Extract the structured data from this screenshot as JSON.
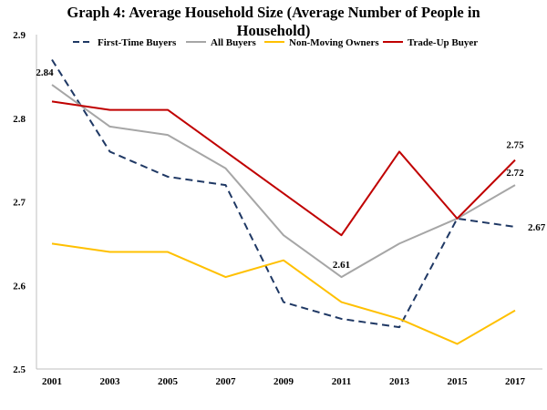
{
  "chart_data": {
    "type": "line",
    "title": "Graph 4: Average Household Size (Average Number of People in Household)",
    "xlabel": "",
    "ylabel": "",
    "ylim": [
      2.5,
      2.9
    ],
    "y_ticks": [
      "2.5",
      "2.6",
      "2.7",
      "2.8",
      "2.9"
    ],
    "y_tick_values": [
      2.5,
      2.6,
      2.7,
      2.8,
      2.9
    ],
    "categories": [
      "2001",
      "2003",
      "2005",
      "2007",
      "2009",
      "2011",
      "2013",
      "2015",
      "2017"
    ],
    "grid": false,
    "legend_position": "top",
    "series": [
      {
        "name": "First-Time Buyers",
        "color": "#1f3864",
        "dash": "dashed",
        "values": [
          2.87,
          2.76,
          2.73,
          2.72,
          2.58,
          2.56,
          2.55,
          2.68,
          2.67
        ]
      },
      {
        "name": "All Buyers",
        "color": "#a6a6a6",
        "dash": "solid",
        "values": [
          2.84,
          2.79,
          2.78,
          2.74,
          2.66,
          2.61,
          2.65,
          2.68,
          2.72
        ]
      },
      {
        "name": "Non-Moving Owners",
        "color": "#ffc000",
        "dash": "solid",
        "values": [
          2.65,
          2.64,
          2.64,
          2.61,
          2.63,
          2.58,
          2.56,
          2.53,
          2.57
        ]
      },
      {
        "name": "Trade-Up Buyer",
        "color": "#c00000",
        "dash": "solid",
        "values": [
          2.82,
          2.81,
          2.81,
          2.76,
          2.71,
          2.66,
          2.76,
          2.68,
          2.75
        ]
      }
    ],
    "data_labels": [
      {
        "series": "All Buyers",
        "category": "2001",
        "text": "2.84"
      },
      {
        "series": "All Buyers",
        "category": "2011",
        "text": "2.61"
      },
      {
        "series": "Trade-Up Buyer",
        "category": "2017",
        "text": "2.75"
      },
      {
        "series": "All Buyers",
        "category": "2017",
        "text": "2.72"
      },
      {
        "series": "First-Time Buyers",
        "category": "2017",
        "text": "2.67"
      }
    ]
  }
}
